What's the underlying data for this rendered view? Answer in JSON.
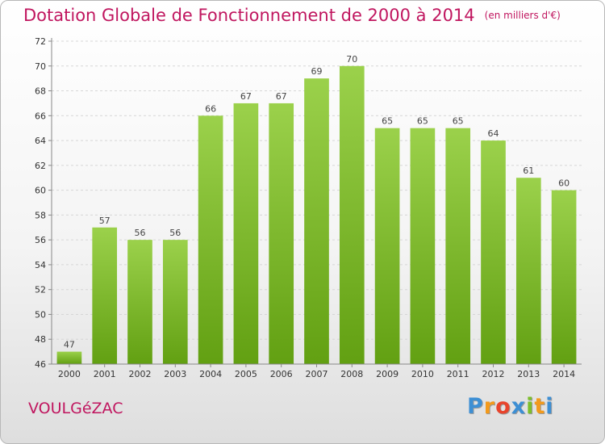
{
  "header": {
    "title": "Dotation Globale de Fonctionnement de 2000 à 2014",
    "unit": "(en milliers d'€)"
  },
  "footer": {
    "commune": "VOULGéZAC",
    "logo_letters": [
      "P",
      "r",
      "o",
      "x",
      "i",
      "t",
      "i"
    ],
    "logo_colors": [
      "#3d8fd4",
      "#f39a1b",
      "#e8442c",
      "#3d8fd4",
      "#7cbf2a",
      "#f39a1b",
      "#3d8fd4"
    ]
  },
  "chart_data": {
    "type": "bar",
    "categories": [
      "2000",
      "2001",
      "2002",
      "2003",
      "2004",
      "2005",
      "2006",
      "2007",
      "2008",
      "2009",
      "2010",
      "2011",
      "2012",
      "2013",
      "2014"
    ],
    "values": [
      47,
      57,
      56,
      56,
      66,
      67,
      67,
      69,
      70,
      65,
      65,
      65,
      64,
      61,
      60
    ],
    "title": "Dotation Globale de Fonctionnement de 2000 à 2014",
    "ylim": [
      46,
      72
    ],
    "yticks": [
      46,
      48,
      50,
      52,
      54,
      56,
      58,
      60,
      62,
      64,
      66,
      68,
      70,
      72
    ],
    "grid": true,
    "colors": {
      "bar_top": "#9bd14b",
      "bar_bottom": "#62a012",
      "axis": "#888888",
      "grid": "#d6d6d6",
      "title": "#c0165f"
    }
  }
}
